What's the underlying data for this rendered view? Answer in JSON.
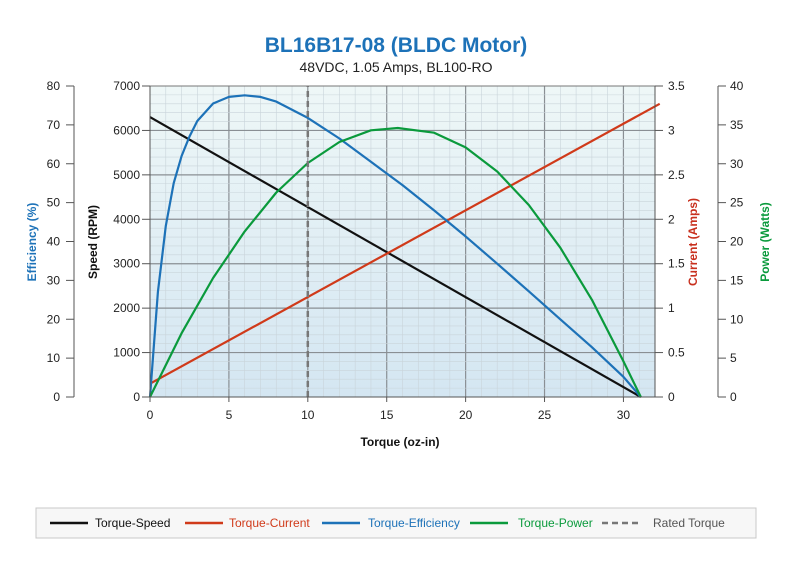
{
  "chart_data": {
    "type": "line",
    "title": "BL16B17-08 (BLDC Motor)",
    "subtitle": "48VDC, 1.05 Amps, BL100-RO",
    "xlabel": "Torque (oz-in)",
    "xlim": [
      0,
      32
    ],
    "x_ticks": [
      0,
      5,
      10,
      15,
      20,
      25,
      30
    ],
    "grid": true,
    "legend_position": "bottom",
    "axes": {
      "efficiency": {
        "label": "Efficiency (%)",
        "range": [
          0,
          80
        ],
        "ticks": [
          0,
          10,
          20,
          30,
          40,
          50,
          60,
          70,
          80
        ],
        "color": "#1d72b8"
      },
      "speed": {
        "label": "Speed (RPM)",
        "range": [
          0,
          7000
        ],
        "ticks": [
          0,
          1000,
          2000,
          3000,
          4000,
          5000,
          6000,
          7000
        ],
        "color": "#111111"
      },
      "current": {
        "label": "Current (Amps)",
        "range": [
          0,
          3.5
        ],
        "ticks": [
          "0",
          "0.5",
          "1",
          "1.5",
          "2",
          "2.5",
          "3",
          "3.5"
        ],
        "color": "#c8301e"
      },
      "power": {
        "label": "Power (Watts)",
        "range": [
          0,
          40
        ],
        "ticks": [
          0,
          5,
          10,
          15,
          20,
          25,
          30,
          35,
          40
        ],
        "color": "#0a9a3c"
      }
    },
    "series": [
      {
        "name": "Torque-Speed",
        "axis": "speed",
        "color": "#111111",
        "dash": false,
        "x": [
          0,
          31.1
        ],
        "y": [
          6300,
          0
        ]
      },
      {
        "name": "Torque-Current",
        "axis": "current",
        "color": "#d03a1a",
        "dash": false,
        "x": [
          0,
          32.3
        ],
        "y": [
          0.15,
          3.3
        ]
      },
      {
        "name": "Torque-Efficiency",
        "axis": "efficiency",
        "color": "#1d72b8",
        "dash": false,
        "x": [
          0,
          0.5,
          1,
          1.5,
          2,
          2.5,
          3,
          4,
          5,
          6,
          7,
          8,
          10,
          12,
          14,
          16,
          18,
          20,
          22,
          24,
          26,
          28,
          30,
          31.1
        ],
        "y": [
          0,
          27,
          44,
          55,
          62,
          67,
          71,
          75.5,
          77.2,
          77.6,
          77.2,
          76,
          71.8,
          66.5,
          60.5,
          54.5,
          48,
          41.3,
          34.3,
          27.2,
          20,
          12.8,
          5.2,
          0
        ]
      },
      {
        "name": "Torque-Power",
        "axis": "power",
        "color": "#0a9a3c",
        "dash": false,
        "x": [
          0,
          2,
          4,
          6,
          8,
          10,
          12,
          14,
          15.7,
          18,
          20,
          22,
          24,
          26,
          28,
          30,
          31.1
        ],
        "y": [
          0,
          8.2,
          15.3,
          21.3,
          26.3,
          30.1,
          32.8,
          34.3,
          34.6,
          34.0,
          32.1,
          29.0,
          24.7,
          19.2,
          12.5,
          4.6,
          0
        ]
      },
      {
        "name": "Rated Torque",
        "axis": "speed",
        "color": "#777777",
        "dash": true,
        "x": [
          10,
          10
        ],
        "y": [
          0,
          7000
        ]
      }
    ]
  }
}
